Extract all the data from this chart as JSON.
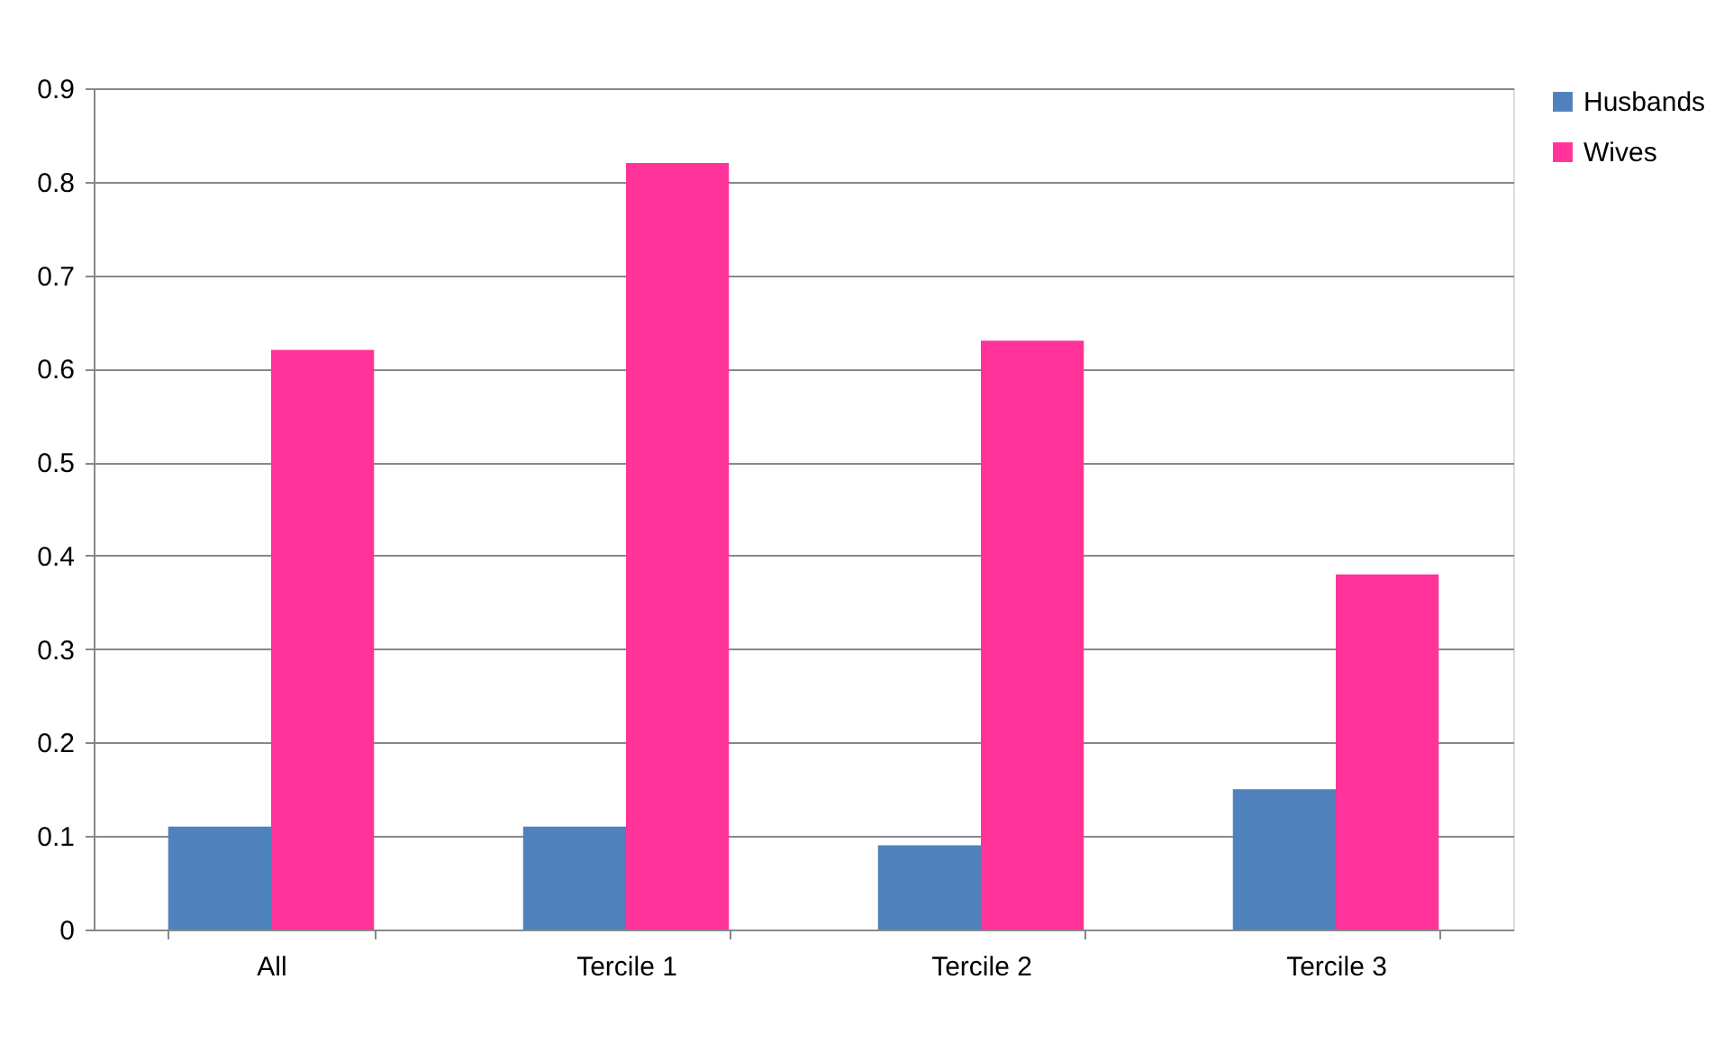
{
  "chart_data": {
    "type": "bar",
    "categories": [
      "All",
      "Tercile 1",
      "Tercile 2",
      "Tercile 3"
    ],
    "series": [
      {
        "name": "Husbands",
        "color": "#4f81bd",
        "values": [
          0.11,
          0.11,
          0.09,
          0.15
        ]
      },
      {
        "name": "Wives",
        "color": "#ff3399",
        "values": [
          0.62,
          0.82,
          0.63,
          0.38
        ]
      }
    ],
    "ylim": [
      0,
      0.9
    ],
    "yticks": [
      0,
      0.1,
      0.2,
      0.3,
      0.4,
      0.5,
      0.6,
      0.7,
      0.8,
      0.9
    ],
    "grid": "y",
    "legend": "right"
  }
}
